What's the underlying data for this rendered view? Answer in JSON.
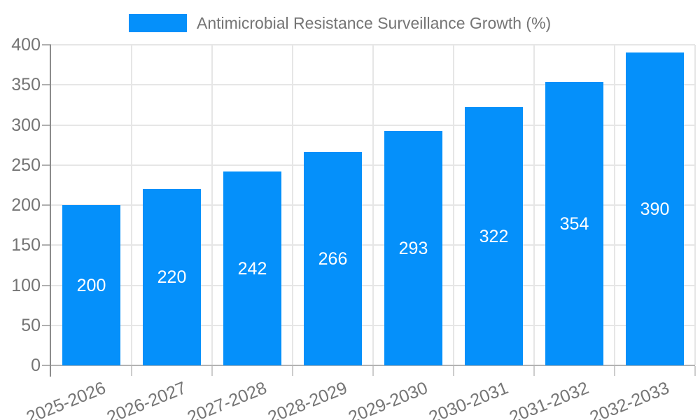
{
  "chart_data": {
    "type": "bar",
    "title": "Antimicrobial Resistance Surveillance Growth (%)",
    "categories": [
      "2025-2026",
      "2026-2027",
      "2027-2028",
      "2028-2029",
      "2029-2030",
      "2030-2031",
      "2031-2032",
      "2032-2033"
    ],
    "values": [
      200,
      220,
      242,
      266,
      293,
      322,
      354,
      390
    ],
    "xlabel": "",
    "ylabel": "",
    "ylim": [
      0,
      400
    ],
    "yticks": [
      0,
      50,
      100,
      150,
      200,
      250,
      300,
      350,
      400
    ],
    "grid": true,
    "legend_position": "top",
    "value_labels_shown": true
  },
  "legend": {
    "label": "Antimicrobial Resistance Surveillance Growth (%)"
  },
  "colors": {
    "bar": "#0590fa",
    "axis_text": "#757575",
    "title_text": "#757575",
    "value_text": "#ffffff",
    "gridline": "#e6e6e6",
    "y_axis_line": "#8c8c8c",
    "baseline": "#b3b3b3",
    "y_tick": "#b0b0b0",
    "x_tick": "#cdcdcd",
    "background": "#ffffff"
  }
}
